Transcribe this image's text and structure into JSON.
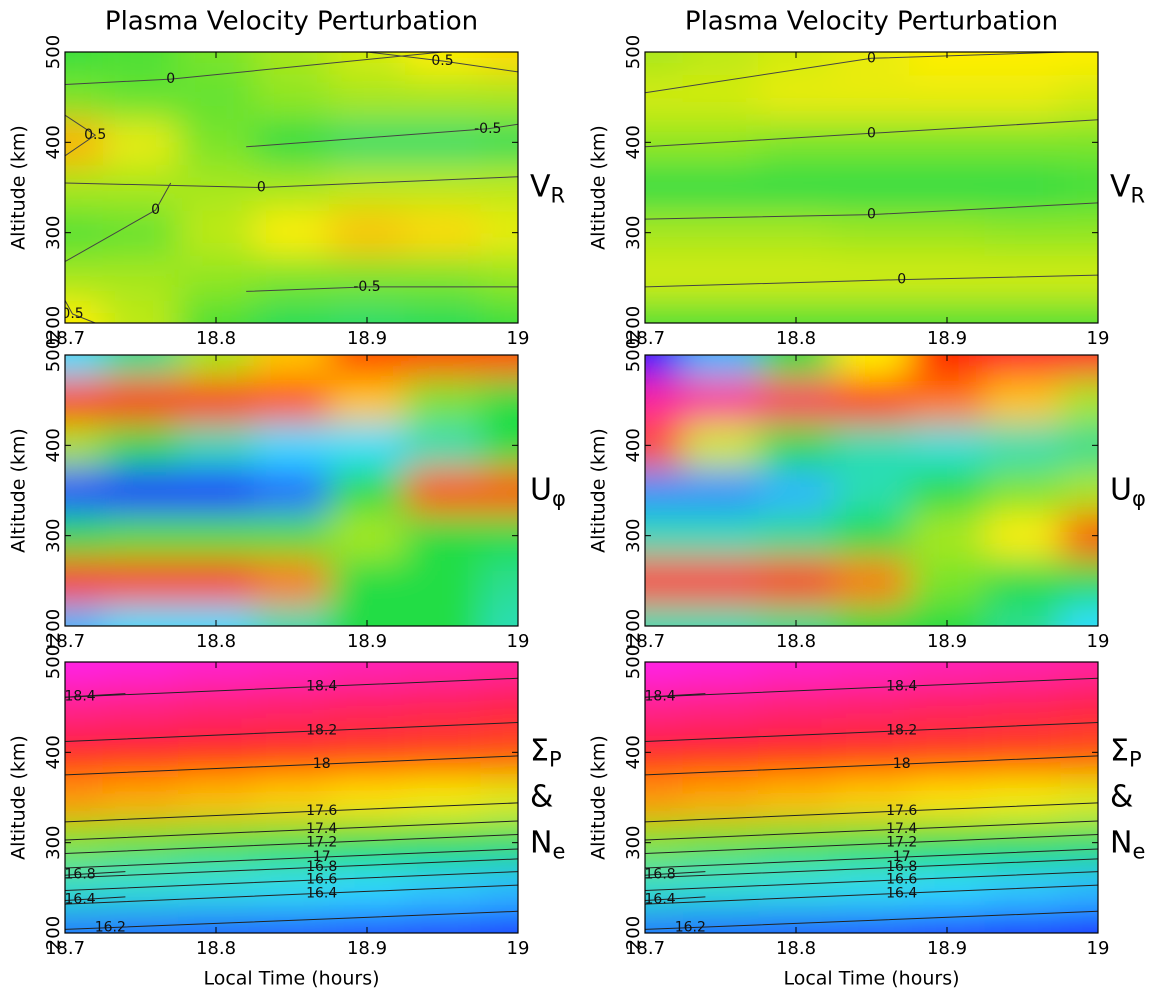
{
  "chart_data": [
    {
      "type": "heatmap",
      "title": "Plasma Velocity Perturbation",
      "ylabel": "Altitude (km)",
      "side_label": [
        {
          "text": "V",
          "sub": "R"
        }
      ],
      "xlim": [
        18.7,
        19
      ],
      "ylim": [
        200,
        500
      ],
      "xticks": [
        18.7,
        18.8,
        18.9,
        19
      ],
      "yticks": [
        200,
        300,
        400,
        500
      ],
      "zlim": [
        -2.5,
        2.5
      ],
      "colormap": [
        "#1a1aff",
        "#33ddff",
        "#22dd44",
        "#ffee00",
        "#ff2200",
        "#ff22ff"
      ],
      "contour_color": "#444444",
      "zx": [
        18.7,
        18.75,
        18.8,
        18.85,
        18.9,
        18.95,
        19
      ],
      "zy": [
        200,
        250,
        300,
        350,
        400,
        450,
        500
      ],
      "z": [
        [
          0.5,
          0.2,
          -0.3,
          -0.6,
          -0.7,
          -0.6,
          -0.4
        ],
        [
          0.1,
          0.1,
          0,
          -0.1,
          -0.1,
          -0.1,
          0
        ],
        [
          -0.3,
          -0.2,
          0.2,
          0.5,
          0.7,
          0.6,
          0.4
        ],
        [
          0.1,
          0.1,
          0.1,
          0.1,
          0.2,
          0.2,
          0.2
        ],
        [
          0.8,
          0.4,
          -0.1,
          -0.5,
          -0.7,
          -0.7,
          -0.6
        ],
        [
          -0.1,
          -0.2,
          -0.2,
          0,
          0.1,
          0.1,
          0.1
        ],
        [
          -0.4,
          -0.3,
          -0.1,
          0.1,
          0.3,
          0.5,
          0.6
        ]
      ],
      "contours": [
        {
          "level": 0,
          "x": [
            18.7,
            18.77,
            18.95
          ],
          "y": [
            464,
            470,
            500
          ]
        },
        {
          "level": 0.5,
          "x": [
            18.9,
            18.95,
            19
          ],
          "y": [
            500,
            490,
            478
          ]
        },
        {
          "level": 0.5,
          "x": [
            18.7,
            18.72,
            18.7
          ],
          "y": [
            430,
            408,
            385
          ]
        },
        {
          "level": -0.5,
          "x": [
            18.82,
            18.98,
            19
          ],
          "y": [
            395,
            415,
            420
          ]
        },
        {
          "level": 0,
          "x": [
            18.7,
            18.83,
            19
          ],
          "y": [
            355,
            350,
            362
          ]
        },
        {
          "level": 0,
          "x": [
            18.7,
            18.76,
            18.77
          ],
          "y": [
            268,
            325,
            355
          ]
        },
        {
          "level": -0.5,
          "x": [
            18.82,
            18.9,
            19
          ],
          "y": [
            235,
            240,
            240
          ]
        },
        {
          "level": 0.5,
          "x": [
            18.7,
            18.705,
            18.72
          ],
          "y": [
            225,
            210,
            200
          ]
        }
      ]
    },
    {
      "type": "heatmap",
      "title": "Plasma Velocity Perturbation",
      "ylabel": "Altitude (km)",
      "side_label": [
        {
          "text": "V",
          "sub": "R"
        }
      ],
      "xlim": [
        18.7,
        19
      ],
      "ylim": [
        200,
        500
      ],
      "xticks": [
        18.7,
        18.8,
        18.9,
        19
      ],
      "yticks": [
        200,
        300,
        400,
        500
      ],
      "zlim": [
        -2.5,
        2.5
      ],
      "colormap": [
        "#1a1aff",
        "#33ddff",
        "#22dd44",
        "#ffee00",
        "#ff2200",
        "#ff22ff"
      ],
      "contour_color": "#444444",
      "zx": [
        18.7,
        18.75,
        18.8,
        18.85,
        18.9,
        18.95,
        19
      ],
      "zy": [
        200,
        250,
        300,
        350,
        400,
        450,
        500
      ],
      "z": [
        [
          -0.3,
          -0.3,
          -0.3,
          -0.3,
          -0.3,
          -0.3,
          -0.3
        ],
        [
          0.3,
          0.3,
          0.3,
          0.3,
          0.3,
          0.3,
          0.3
        ],
        [
          0.1,
          0.1,
          0.1,
          0.05,
          0.05,
          0,
          0
        ],
        [
          -0.5,
          -0.5,
          -0.5,
          -0.5,
          -0.5,
          -0.5,
          -0.4
        ],
        [
          0,
          0,
          -0.1,
          -0.1,
          -0.1,
          -0.1,
          -0.1
        ],
        [
          0.3,
          0.3,
          0.4,
          0.4,
          0.4,
          0.4,
          0.3
        ],
        [
          0.1,
          0.2,
          0.3,
          0.4,
          0.5,
          0.5,
          0.5
        ]
      ],
      "contours": [
        {
          "level": 0,
          "x": [
            18.7,
            18.85,
            18.98
          ],
          "y": [
            455,
            493,
            500
          ]
        },
        {
          "level": 0,
          "x": [
            18.7,
            18.85,
            19
          ],
          "y": [
            395,
            410,
            425
          ]
        },
        {
          "level": 0,
          "x": [
            18.7,
            18.85,
            19
          ],
          "y": [
            315,
            320,
            333
          ]
        },
        {
          "level": 0,
          "x": [
            18.7,
            18.87,
            19
          ],
          "y": [
            240,
            248,
            253
          ]
        }
      ]
    },
    {
      "type": "heatmap",
      "ylabel": "Altitude (km)",
      "side_label": [
        {
          "text": "U",
          "sub": "φ"
        }
      ],
      "xlim": [
        18.7,
        19
      ],
      "ylim": [
        200,
        500
      ],
      "xticks": [
        18.7,
        18.8,
        18.9,
        19
      ],
      "yticks": [
        200,
        300,
        400,
        500
      ],
      "zlim": [
        -1,
        1.5
      ],
      "colormap": [
        "#1a1aff",
        "#33ddff",
        "#22dd44",
        "#ffee00",
        "#ff2200",
        "#ff22ff"
      ],
      "contour_color": "#444444",
      "zx": [
        18.7,
        18.75,
        18.8,
        18.85,
        18.9,
        18.95,
        19
      ],
      "zy": [
        200,
        250,
        300,
        350,
        400,
        450,
        500
      ],
      "z": [
        [
          -0.6,
          -0.5,
          -0.5,
          -0.3,
          0,
          0,
          -0.3
        ],
        [
          1,
          1,
          1,
          0.8,
          0,
          0,
          -0.2
        ],
        [
          0,
          0.1,
          0.1,
          0.1,
          0.3,
          0,
          0
        ],
        [
          -0.9,
          -1,
          -1,
          -0.8,
          0,
          0.9,
          0.9
        ],
        [
          0.3,
          0,
          -0.3,
          -0.5,
          -0.5,
          -0.3,
          0
        ],
        [
          1,
          1,
          1,
          0.9,
          0.6,
          0.2,
          0
        ],
        [
          -0.5,
          -0.2,
          0.3,
          0.6,
          0.9,
          0.9,
          0.9
        ]
      ],
      "contours": []
    },
    {
      "type": "heatmap",
      "ylabel": "Altitude (km)",
      "side_label": [
        {
          "text": "U",
          "sub": "φ"
        }
      ],
      "xlim": [
        18.7,
        19
      ],
      "ylim": [
        200,
        500
      ],
      "xticks": [
        18.7,
        18.8,
        18.9,
        19
      ],
      "yticks": [
        200,
        300,
        400,
        500
      ],
      "zlim": [
        -1,
        1.5
      ],
      "colormap": [
        "#1a1aff",
        "#33ddff",
        "#22dd44",
        "#ffee00",
        "#ff2200",
        "#ff22ff"
      ],
      "contour_color": "#444444",
      "zx": [
        18.7,
        18.75,
        18.8,
        18.85,
        18.9,
        18.95,
        19
      ],
      "zy": [
        200,
        250,
        300,
        350,
        400,
        450,
        500
      ],
      "z": [
        [
          -0.3,
          -0.3,
          -0.2,
          0,
          0,
          -0.2,
          -0.5
        ],
        [
          1.1,
          1.1,
          1,
          0.8,
          0.2,
          0,
          0
        ],
        [
          -0.3,
          -0.3,
          -0.2,
          0,
          0.3,
          0.5,
          0.9
        ],
        [
          -0.7,
          -0.7,
          -0.6,
          -0.3,
          0,
          0.2,
          0.3
        ],
        [
          0.9,
          0.4,
          0,
          -0.3,
          -0.4,
          -0.3,
          -0.2
        ],
        [
          1.3,
          1.3,
          1.2,
          1,
          0.8,
          0.6,
          0.3
        ],
        [
          -1,
          -0.6,
          0,
          0.5,
          1,
          1.1,
          1.1
        ]
      ],
      "contours": []
    },
    {
      "type": "heatmap",
      "ylabel": "Altitude (km)",
      "xlabel": "Local Time (hours)",
      "side_label": [
        {
          "text": "Σ",
          "sub": "P"
        },
        {
          "text": "&"
        },
        {
          "text": "N",
          "sub": "e"
        }
      ],
      "xlim": [
        18.7,
        19
      ],
      "ylim": [
        200,
        500
      ],
      "xticks": [
        18.7,
        18.8,
        18.9,
        19
      ],
      "yticks": [
        200,
        300,
        400,
        500
      ],
      "zlim": [
        15.9,
        18.6
      ],
      "colormap": [
        "#1a1aff",
        "#33ddff",
        "#22dd44",
        "#ffee00",
        "#ff2200",
        "#ff22ff"
      ],
      "contour_color": "#222222",
      "zx": [
        18.7,
        18.75,
        18.8,
        18.85,
        18.9,
        18.95,
        19
      ],
      "zy": [
        200,
        250,
        300,
        350,
        400,
        450,
        500
      ],
      "z": [
        [
          16.15,
          16.13,
          16.1,
          16.08,
          16.05,
          16.03,
          16.0
        ],
        [
          16.6,
          16.56,
          16.52,
          16.48,
          16.43,
          16.39,
          16.35
        ],
        [
          17.2,
          17.15,
          17.1,
          17.05,
          17,
          16.95,
          16.9
        ],
        [
          17.75,
          17.7,
          17.65,
          17.6,
          17.55,
          17.5,
          17.45
        ],
        [
          18.1,
          18.08,
          18.05,
          18.03,
          18,
          17.98,
          17.95
        ],
        [
          18.35,
          18.33,
          18.3,
          18.28,
          18.25,
          18.23,
          18.2
        ],
        [
          18.55,
          18.53,
          18.5,
          18.48,
          18.45,
          18.43,
          18.4
        ]
      ],
      "contours": [
        {
          "level": 18.4,
          "x": [
            18.7,
            18.87,
            19
          ],
          "y": [
            461,
            473,
            482
          ]
        },
        {
          "level": 18.2,
          "x": [
            18.7,
            18.87,
            19
          ],
          "y": [
            412,
            424,
            433
          ]
        },
        {
          "level": 18,
          "x": [
            18.7,
            18.87,
            19
          ],
          "y": [
            375,
            387,
            396
          ]
        },
        {
          "level": 17.6,
          "x": [
            18.7,
            18.87,
            19
          ],
          "y": [
            323,
            335,
            344
          ]
        },
        {
          "level": 17.4,
          "x": [
            18.7,
            18.87,
            19
          ],
          "y": [
            303,
            315,
            324
          ]
        },
        {
          "level": 17.2,
          "x": [
            18.7,
            18.87,
            19
          ],
          "y": [
            288,
            300,
            309
          ]
        },
        {
          "level": 17,
          "x": [
            18.7,
            18.87,
            19
          ],
          "y": [
            272,
            284,
            293
          ]
        },
        {
          "level": 16.8,
          "x": [
            18.7,
            18.87,
            19
          ],
          "y": [
            261,
            273,
            282
          ]
        },
        {
          "level": 16.6,
          "x": [
            18.7,
            18.87,
            19
          ],
          "y": [
            247,
            259,
            268
          ]
        },
        {
          "level": 16.4,
          "x": [
            18.7,
            18.87,
            19
          ],
          "y": [
            232,
            244,
            253
          ]
        },
        {
          "level": 18.4,
          "x": [
            18.7,
            18.71,
            18.74
          ],
          "y": [
            461,
            462,
            465
          ]
        },
        {
          "level": 16.8,
          "x": [
            18.7,
            18.71,
            18.74
          ],
          "y": [
            264,
            265,
            268
          ]
        },
        {
          "level": 16.4,
          "x": [
            18.7,
            18.71,
            18.74
          ],
          "y": [
            236,
            237,
            240
          ]
        },
        {
          "level": 16.2,
          "x": [
            18.7,
            18.73,
            19
          ],
          "y": [
            204,
            206,
            224
          ]
        }
      ]
    },
    {
      "type": "heatmap",
      "ylabel": "Altitude (km)",
      "xlabel": "Local Time (hours)",
      "side_label": [
        {
          "text": "Σ",
          "sub": "P"
        },
        {
          "text": "&"
        },
        {
          "text": "N",
          "sub": "e"
        }
      ],
      "xlim": [
        18.7,
        19
      ],
      "ylim": [
        200,
        500
      ],
      "xticks": [
        18.7,
        18.8,
        18.9,
        19
      ],
      "yticks": [
        200,
        300,
        400,
        500
      ],
      "zlim": [
        15.9,
        18.6
      ],
      "colormap": [
        "#1a1aff",
        "#33ddff",
        "#22dd44",
        "#ffee00",
        "#ff2200",
        "#ff22ff"
      ],
      "contour_color": "#222222",
      "zx": [
        18.7,
        18.75,
        18.8,
        18.85,
        18.9,
        18.95,
        19
      ],
      "zy": [
        200,
        250,
        300,
        350,
        400,
        450,
        500
      ],
      "z": [
        [
          16.15,
          16.12,
          16.09,
          16.06,
          16.02,
          15.99,
          15.95
        ],
        [
          16.6,
          16.56,
          16.52,
          16.48,
          16.43,
          16.39,
          16.35
        ],
        [
          17.2,
          17.15,
          17.1,
          17.05,
          17,
          16.95,
          16.9
        ],
        [
          17.75,
          17.7,
          17.65,
          17.6,
          17.55,
          17.5,
          17.45
        ],
        [
          18.1,
          18.08,
          18.05,
          18.03,
          18,
          17.98,
          17.95
        ],
        [
          18.35,
          18.33,
          18.3,
          18.28,
          18.25,
          18.23,
          18.2
        ],
        [
          18.55,
          18.53,
          18.5,
          18.48,
          18.45,
          18.43,
          18.4
        ]
      ],
      "contours": [
        {
          "level": 18.4,
          "x": [
            18.7,
            18.87,
            19
          ],
          "y": [
            461,
            473,
            482
          ]
        },
        {
          "level": 18.2,
          "x": [
            18.7,
            18.87,
            19
          ],
          "y": [
            412,
            424,
            433
          ]
        },
        {
          "level": 18,
          "x": [
            18.7,
            18.87,
            19
          ],
          "y": [
            375,
            387,
            396
          ]
        },
        {
          "level": 17.6,
          "x": [
            18.7,
            18.87,
            19
          ],
          "y": [
            323,
            335,
            344
          ]
        },
        {
          "level": 17.4,
          "x": [
            18.7,
            18.87,
            19
          ],
          "y": [
            303,
            315,
            324
          ]
        },
        {
          "level": 17.2,
          "x": [
            18.7,
            18.87,
            19
          ],
          "y": [
            288,
            300,
            309
          ]
        },
        {
          "level": 17,
          "x": [
            18.7,
            18.87,
            19
          ],
          "y": [
            272,
            284,
            293
          ]
        },
        {
          "level": 16.8,
          "x": [
            18.7,
            18.87,
            19
          ],
          "y": [
            261,
            273,
            282
          ]
        },
        {
          "level": 16.6,
          "x": [
            18.7,
            18.87,
            19
          ],
          "y": [
            247,
            259,
            268
          ]
        },
        {
          "level": 16.4,
          "x": [
            18.7,
            18.87,
            19
          ],
          "y": [
            232,
            244,
            253
          ]
        },
        {
          "level": 18.4,
          "x": [
            18.7,
            18.71,
            18.74
          ],
          "y": [
            461,
            462,
            465
          ]
        },
        {
          "level": 16.8,
          "x": [
            18.7,
            18.71,
            18.74
          ],
          "y": [
            264,
            265,
            268
          ]
        },
        {
          "level": 16.4,
          "x": [
            18.7,
            18.71,
            18.74
          ],
          "y": [
            236,
            237,
            240
          ]
        },
        {
          "level": 16.2,
          "x": [
            18.7,
            18.73,
            19
          ],
          "y": [
            204,
            206,
            224
          ]
        }
      ]
    }
  ]
}
